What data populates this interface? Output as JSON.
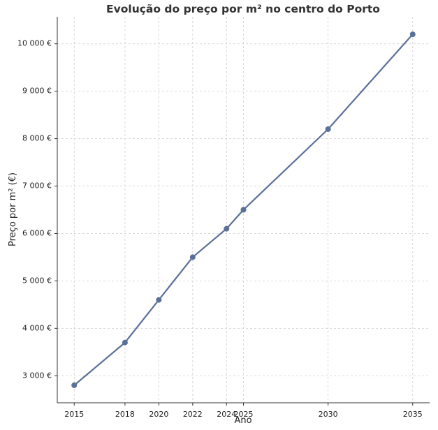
{
  "chart_data": {
    "type": "line",
    "title": "Evolução do preço por m² no centro do Porto",
    "xlabel": "Ano",
    "ylabel": "Preço por m² (€)",
    "x": [
      2015,
      2018,
      2020,
      2022,
      2024,
      2025,
      2030,
      2035
    ],
    "series": [
      {
        "values": [
          2800,
          3700,
          4600,
          5500,
          6100,
          6500,
          8200,
          10200
        ]
      }
    ],
    "xticks": [
      2015,
      2018,
      2020,
      2022,
      2024,
      2025,
      2030,
      2035
    ],
    "xtick_labels": [
      "2015",
      "2018",
      "2020",
      "2022",
      "2024",
      "2025",
      "2030",
      "2035"
    ],
    "yticks": [
      3000,
      4000,
      5000,
      6000,
      7000,
      8000,
      9000,
      10000
    ],
    "ytick_labels": [
      "3 000 €",
      "4 000 €",
      "5 000 €",
      "6 000 €",
      "7 000 €",
      "8 000 €",
      "9 000 €",
      "10 000 €"
    ],
    "xlim": [
      2014,
      2036
    ],
    "ylim": [
      2430,
      10570
    ],
    "grid": true,
    "line_color": "#5a7099",
    "marker": "circle"
  }
}
